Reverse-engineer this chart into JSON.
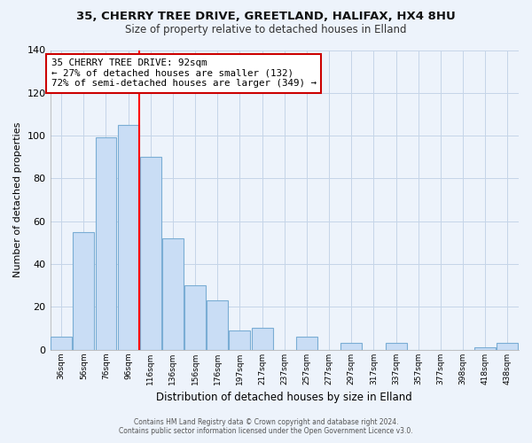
{
  "title": "35, CHERRY TREE DRIVE, GREETLAND, HALIFAX, HX4 8HU",
  "subtitle": "Size of property relative to detached houses in Elland",
  "xlabel": "Distribution of detached houses by size in Elland",
  "ylabel": "Number of detached properties",
  "bar_labels": [
    "36sqm",
    "56sqm",
    "76sqm",
    "96sqm",
    "116sqm",
    "136sqm",
    "156sqm",
    "176sqm",
    "197sqm",
    "217sqm",
    "237sqm",
    "257sqm",
    "277sqm",
    "297sqm",
    "317sqm",
    "337sqm",
    "357sqm",
    "377sqm",
    "398sqm",
    "418sqm",
    "438sqm"
  ],
  "bar_values": [
    6,
    55,
    99,
    105,
    90,
    52,
    30,
    23,
    9,
    10,
    0,
    6,
    0,
    3,
    0,
    3,
    0,
    0,
    0,
    1,
    3
  ],
  "bar_color": "#c9ddf5",
  "bar_edge_color": "#7aadd4",
  "vline_x": 3.5,
  "vline_color": "red",
  "annotation_text": "35 CHERRY TREE DRIVE: 92sqm\n← 27% of detached houses are smaller (132)\n72% of semi-detached houses are larger (349) →",
  "annotation_box_color": "white",
  "annotation_box_edge": "#cc0000",
  "ylim": [
    0,
    140
  ],
  "yticks": [
    0,
    20,
    40,
    60,
    80,
    100,
    120,
    140
  ],
  "footer_line1": "Contains HM Land Registry data © Crown copyright and database right 2024.",
  "footer_line2": "Contains public sector information licensed under the Open Government Licence v3.0.",
  "bg_color": "#edf3fb",
  "plot_bg_color": "#edf3fb",
  "grid_color": "#c5d5e8"
}
